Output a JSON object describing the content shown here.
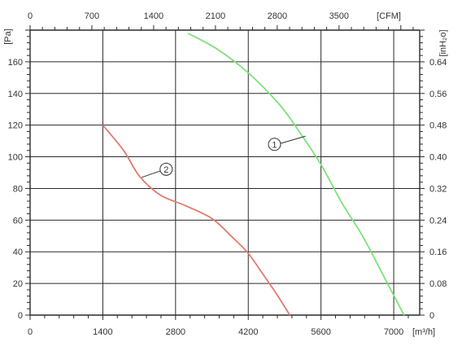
{
  "chart_data": {
    "type": "line",
    "axes": {
      "x_bottom": {
        "unit_label": "[m³/h]",
        "range": [
          0,
          7500
        ],
        "ticks": [
          0,
          1400,
          2800,
          4200,
          5600,
          7000
        ],
        "tick_labels": [
          "0",
          "1400",
          "2800",
          "4200",
          "5600",
          "7000"
        ]
      },
      "x_top": {
        "unit_label": "[CFM]",
        "range": [
          0,
          4414
        ],
        "ticks": [
          0,
          700,
          1400,
          2100,
          2800,
          3500
        ],
        "tick_labels": [
          "0",
          "700",
          "1400",
          "2100",
          "2800",
          "3500"
        ]
      },
      "y_left": {
        "unit_label": "[Pa]",
        "range": [
          0,
          180
        ],
        "ticks": [
          0,
          20,
          40,
          60,
          80,
          100,
          120,
          140,
          160
        ],
        "tick_labels": [
          "0",
          "20",
          "40",
          "60",
          "80",
          "100",
          "120",
          "140",
          "160"
        ]
      },
      "y_right": {
        "unit_label": "[inH₂o]",
        "ticks": [
          0,
          0.08,
          0.16,
          0.24,
          0.32,
          0.4,
          0.48,
          0.56,
          0.64
        ],
        "tick_labels": [
          "0",
          "0.08",
          "0.16",
          "0.24",
          "0.32",
          "0.40",
          "0.48",
          "0.56",
          "0.64"
        ]
      }
    },
    "grid": true,
    "series": [
      {
        "name": "1",
        "color": "#7ee07a",
        "x": [
          3040,
          3600,
          4200,
          4800,
          5200,
          5600,
          6000,
          6400,
          6800,
          7200
        ],
        "y": [
          178,
          168,
          153,
          133,
          115,
          95,
          71,
          50,
          25,
          0
        ]
      },
      {
        "name": "2",
        "color": "#e07a6c",
        "x": [
          1400,
          1800,
          2100,
          2500,
          3000,
          3500,
          3900,
          4200,
          4500,
          4750,
          5000
        ],
        "y": [
          120,
          104,
          88,
          76,
          69,
          61,
          49,
          39,
          25,
          13,
          0
        ]
      }
    ],
    "annotations": [
      {
        "label": "1",
        "series": "1",
        "x": 5300,
        "y": 113
      },
      {
        "label": "2",
        "series": "2",
        "x": 2150,
        "y": 87
      }
    ]
  }
}
